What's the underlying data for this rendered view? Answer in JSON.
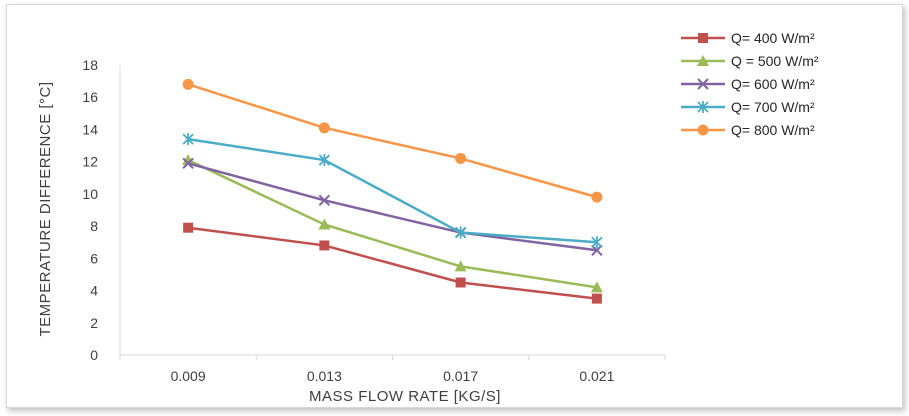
{
  "chart_data": {
    "type": "line",
    "title": "",
    "xlabel": "MASS FLOW RATE [KG/S]",
    "ylabel": "TEMPERATURE DIFFERENCE [°C]",
    "categories": [
      "0.009",
      "0.013",
      "0.017",
      "0.021"
    ],
    "ylim": [
      0,
      18
    ],
    "yticks": [
      0,
      2,
      4,
      6,
      8,
      10,
      12,
      14,
      16,
      18
    ],
    "grid": false,
    "legend_position": "top-right",
    "series": [
      {
        "name": "Q= 400 W/m²",
        "values": [
          7.9,
          6.8,
          4.5,
          3.5
        ],
        "color": "#c0504d",
        "marker": "square"
      },
      {
        "name": "Q = 500 W/m²",
        "values": [
          12.1,
          8.1,
          5.5,
          4.2
        ],
        "color": "#9bbb59",
        "marker": "triangle"
      },
      {
        "name": "Q= 600 W/m²",
        "values": [
          11.9,
          9.6,
          7.6,
          6.5
        ],
        "color": "#8064a2",
        "marker": "x"
      },
      {
        "name": "Q= 700 W/m²",
        "values": [
          13.4,
          12.1,
          7.6,
          7.0
        ],
        "color": "#4bacc6",
        "marker": "star"
      },
      {
        "name": "Q= 800 W/m²",
        "values": [
          16.8,
          14.1,
          12.2,
          9.8
        ],
        "color": "#f79646",
        "marker": "circle"
      }
    ]
  }
}
